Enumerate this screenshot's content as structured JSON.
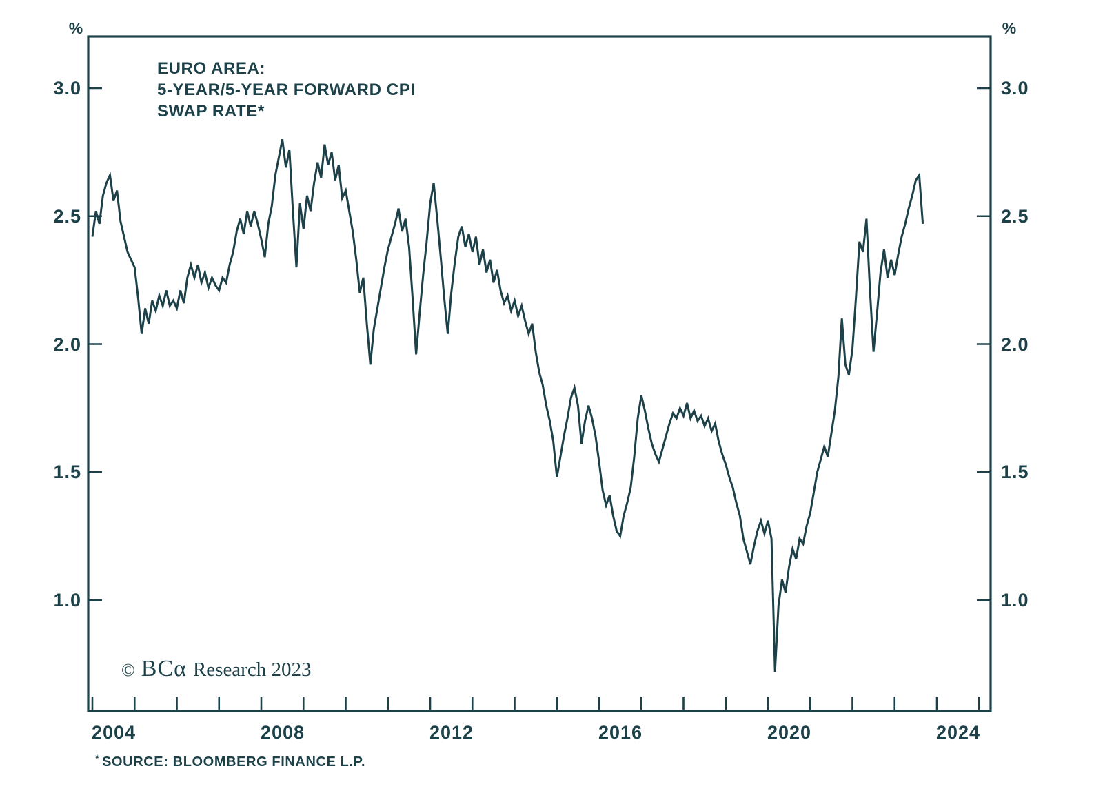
{
  "chart_data": {
    "type": "line",
    "title_lines": [
      "EURO AREA:",
      "5-YEAR/5-YEAR FORWARD CPI",
      "SWAP RATE*"
    ],
    "unit_left": "%",
    "unit_right": "%",
    "y_axis": {
      "tick_labels": [
        "3.0",
        "2.5",
        "2.0",
        "1.5",
        "1.0"
      ],
      "tick_values": [
        3.0,
        2.5,
        2.0,
        1.5,
        1.0
      ],
      "approx_range_shown": [
        0.57,
        3.2
      ],
      "unit": "percent"
    },
    "x_axis": {
      "labels": [
        "2004",
        "2008",
        "2012",
        "2016",
        "2020",
        "2024"
      ],
      "label_years": [
        2004,
        2008,
        2012,
        2016,
        2020,
        2024
      ],
      "minor_tick_every_years": 1,
      "first_tick_year": 2004,
      "last_tick_year": 2025
    },
    "series": {
      "name": "Euro Area 5-Year/5-Year Forward CPI Swap Rate",
      "start_year": 2004,
      "points_per_year": 12,
      "values": [
        2.42,
        2.52,
        2.47,
        2.58,
        2.63,
        2.66,
        2.56,
        2.6,
        2.48,
        2.42,
        2.36,
        2.33,
        2.3,
        2.18,
        2.04,
        2.14,
        2.08,
        2.17,
        2.13,
        2.19,
        2.15,
        2.21,
        2.15,
        2.17,
        2.14,
        2.21,
        2.16,
        2.26,
        2.31,
        2.26,
        2.31,
        2.24,
        2.28,
        2.22,
        2.26,
        2.23,
        2.21,
        2.26,
        2.24,
        2.31,
        2.36,
        2.44,
        2.49,
        2.43,
        2.52,
        2.46,
        2.52,
        2.47,
        2.41,
        2.34,
        2.47,
        2.54,
        2.66,
        2.73,
        2.8,
        2.69,
        2.76,
        2.52,
        2.3,
        2.55,
        2.45,
        2.58,
        2.52,
        2.63,
        2.71,
        2.65,
        2.78,
        2.7,
        2.75,
        2.64,
        2.7,
        2.57,
        2.6,
        2.52,
        2.44,
        2.33,
        2.2,
        2.26,
        2.08,
        1.92,
        2.06,
        2.14,
        2.22,
        2.3,
        2.37,
        2.42,
        2.47,
        2.53,
        2.44,
        2.49,
        2.38,
        2.18,
        1.96,
        2.12,
        2.27,
        2.4,
        2.55,
        2.63,
        2.49,
        2.34,
        2.18,
        2.04,
        2.2,
        2.32,
        2.42,
        2.46,
        2.38,
        2.43,
        2.36,
        2.42,
        2.31,
        2.37,
        2.28,
        2.33,
        2.24,
        2.29,
        2.21,
        2.16,
        2.19,
        2.13,
        2.17,
        2.11,
        2.15,
        2.09,
        2.04,
        2.08,
        1.97,
        1.89,
        1.84,
        1.76,
        1.7,
        1.62,
        1.48,
        1.56,
        1.64,
        1.71,
        1.79,
        1.83,
        1.76,
        1.61,
        1.7,
        1.76,
        1.71,
        1.64,
        1.54,
        1.43,
        1.37,
        1.41,
        1.33,
        1.27,
        1.25,
        1.33,
        1.38,
        1.44,
        1.56,
        1.71,
        1.8,
        1.74,
        1.67,
        1.61,
        1.57,
        1.54,
        1.59,
        1.64,
        1.69,
        1.73,
        1.71,
        1.75,
        1.72,
        1.77,
        1.71,
        1.74,
        1.7,
        1.72,
        1.68,
        1.71,
        1.66,
        1.69,
        1.62,
        1.57,
        1.53,
        1.48,
        1.44,
        1.38,
        1.33,
        1.24,
        1.19,
        1.14,
        1.21,
        1.27,
        1.31,
        1.26,
        1.31,
        1.24,
        0.72,
        0.98,
        1.08,
        1.03,
        1.13,
        1.2,
        1.16,
        1.24,
        1.22,
        1.29,
        1.34,
        1.42,
        1.5,
        1.55,
        1.6,
        1.56,
        1.65,
        1.74,
        1.87,
        2.1,
        1.92,
        1.88,
        1.98,
        2.18,
        2.4,
        2.36,
        2.49,
        2.21,
        1.97,
        2.12,
        2.28,
        2.37,
        2.26,
        2.33,
        2.27,
        2.35,
        2.42,
        2.47,
        2.53,
        2.58,
        2.64,
        2.66,
        2.47
      ]
    },
    "copyright": {
      "symbol": "©",
      "brand": "BCα",
      "rest": "Research 2023"
    },
    "footnote": {
      "marker": "*",
      "text": "SOURCE: BLOOMBERG FINANCE L.P."
    },
    "colors": {
      "ink": "#1d4149",
      "background": "#ffffff"
    },
    "legend": "none",
    "grid": "off"
  }
}
